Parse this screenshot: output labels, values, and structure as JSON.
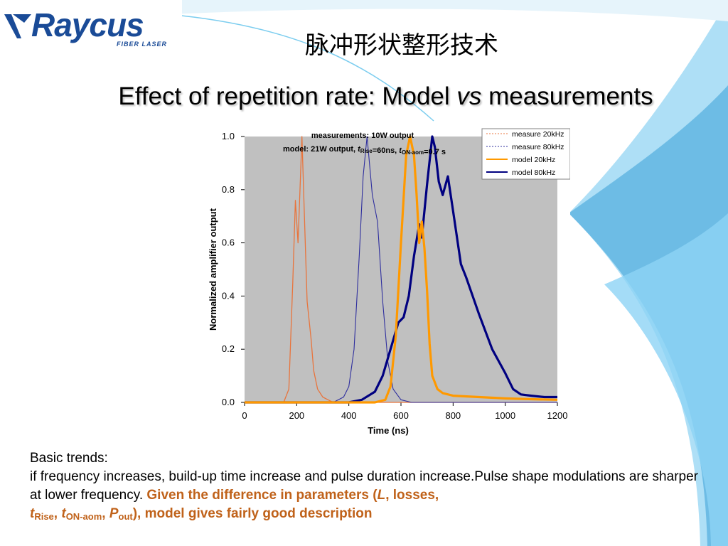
{
  "header": {
    "logo_text": "Raycus",
    "logo_subtext": "FIBER LASER",
    "title_cn": "脉冲形状整形技术",
    "subtitle_main": "Effect of repetition rate: Model ",
    "subtitle_vs": "vs",
    "subtitle_end": " measurements"
  },
  "colors": {
    "model_20khz": "#ff9900",
    "model_80khz": "#000080",
    "measure_20khz": "#e8743c",
    "measure_80khz": "#2e2e9e",
    "plot_bg": "#c0c0c0",
    "highlight": "#c0621a"
  },
  "chart_data": {
    "type": "line",
    "annotation_line1": "measurements: 10W output",
    "annotation_line2_parts": [
      "model: 21W output, ",
      "t",
      "Rise",
      "=60ns, ",
      "t",
      "ON-aom",
      "=0.7  s"
    ],
    "xlabel": "Time (ns)",
    "ylabel": "Normalized amplifier output",
    "xlim": [
      0,
      1200
    ],
    "ylim": [
      0,
      1.0
    ],
    "xticks": [
      "0",
      "200",
      "400",
      "600",
      "800",
      "1000",
      "1200"
    ],
    "yticks": [
      "0.0",
      "0.2",
      "0.4",
      "0.6",
      "0.8",
      "1.0"
    ],
    "legend_position": "top-right",
    "series": [
      {
        "name": "measure 20kHz",
        "key": "measure_20khz",
        "x": [
          0,
          150,
          170,
          185,
          195,
          205,
          212,
          220,
          228,
          240,
          255,
          265,
          280,
          300,
          320,
          340,
          1200
        ],
        "y": [
          0,
          0,
          0.05,
          0.45,
          0.76,
          0.6,
          0.78,
          1.0,
          0.75,
          0.38,
          0.24,
          0.12,
          0.05,
          0.02,
          0.01,
          0,
          0
        ]
      },
      {
        "name": "measure 80kHz",
        "key": "measure_80khz",
        "x": [
          0,
          340,
          380,
          400,
          420,
          440,
          455,
          470,
          490,
          510,
          530,
          550,
          570,
          600,
          640,
          1200
        ],
        "y": [
          0,
          0,
          0.02,
          0.06,
          0.2,
          0.55,
          0.85,
          1.0,
          0.78,
          0.68,
          0.38,
          0.15,
          0.05,
          0.01,
          0,
          0
        ]
      },
      {
        "name": "model 20kHz",
        "key": "model_20khz",
        "x": [
          0,
          500,
          540,
          560,
          580,
          600,
          620,
          635,
          650,
          660,
          670,
          680,
          690,
          700,
          710,
          720,
          740,
          760,
          800,
          900,
          1000,
          1100,
          1200
        ],
        "y": [
          0,
          0,
          0.01,
          0.06,
          0.25,
          0.6,
          0.93,
          1.0,
          0.93,
          0.78,
          0.6,
          0.68,
          0.58,
          0.42,
          0.22,
          0.1,
          0.05,
          0.035,
          0.025,
          0.02,
          0.015,
          0.012,
          0.01
        ]
      },
      {
        "name": "model 80kHz",
        "key": "model_80khz",
        "x": [
          0,
          300,
          400,
          450,
          500,
          530,
          560,
          590,
          610,
          630,
          650,
          670,
          680,
          700,
          720,
          730,
          745,
          760,
          780,
          800,
          830,
          850,
          900,
          950,
          1000,
          1030,
          1060,
          1100,
          1150,
          1200
        ],
        "y": [
          0,
          0,
          0,
          0.01,
          0.04,
          0.1,
          0.2,
          0.3,
          0.32,
          0.4,
          0.55,
          0.67,
          0.62,
          0.82,
          1.0,
          0.96,
          0.83,
          0.78,
          0.85,
          0.72,
          0.52,
          0.47,
          0.33,
          0.2,
          0.11,
          0.05,
          0.03,
          0.025,
          0.02,
          0.02
        ]
      }
    ]
  },
  "notes": {
    "line1": "Basic trends:",
    "line2": "if frequency increases, build-up time increase and pulse duration increase.Pulse shape modulations are sharper at lower frequency. ",
    "hl_a": "Given the difference in parameters (",
    "hl_L": "L",
    "hl_b": ", losses, ",
    "hl_t1": "t",
    "hl_sub1": "Rise",
    "hl_c": ", ",
    "hl_t2": "t",
    "hl_sub2": "ON-aom",
    "hl_d": ", ",
    "hl_P": "P",
    "hl_sub3": "out",
    "hl_e": "), model gives fairly good description"
  }
}
